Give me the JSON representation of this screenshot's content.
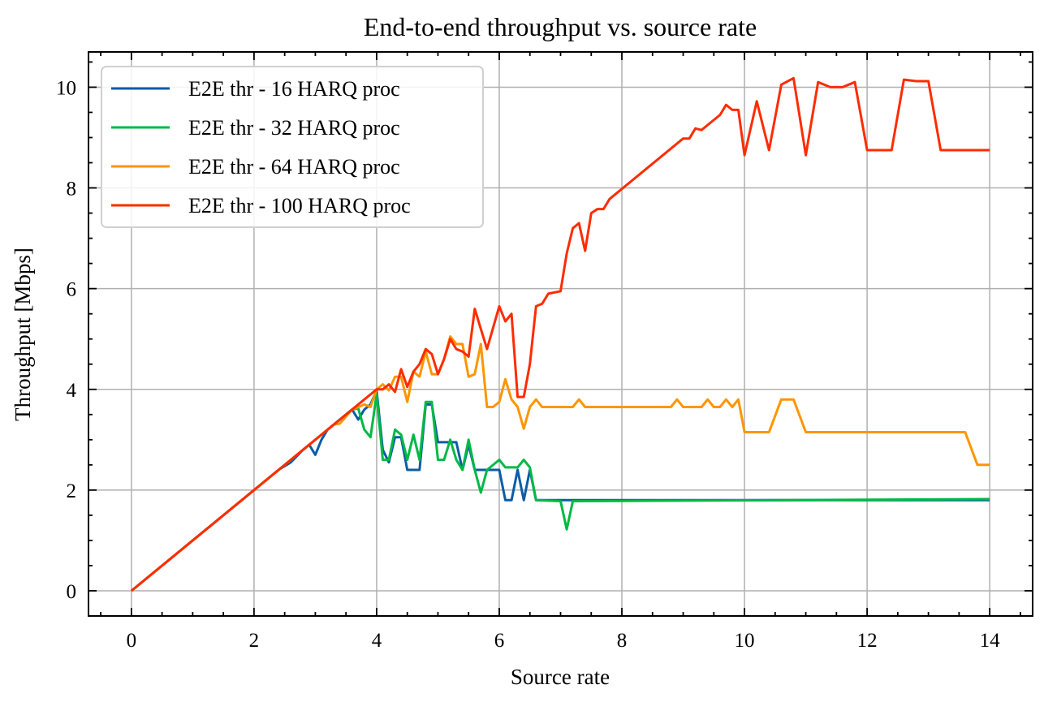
{
  "chart_data": {
    "type": "line",
    "title": "End-to-end throughput vs. source rate",
    "xlabel": "Source rate",
    "ylabel": "Throughput [Mbps]",
    "xlim": [
      -0.7,
      14.7
    ],
    "ylim": [
      -0.5,
      10.7
    ],
    "xticks": [
      0,
      2,
      4,
      6,
      8,
      10,
      12,
      14
    ],
    "xtick_labels": [
      "0",
      "2",
      "4",
      "6",
      "8",
      "10",
      "12",
      "14"
    ],
    "yticks": [
      0,
      2,
      4,
      6,
      8,
      10
    ],
    "ytick_labels": [
      "0",
      "2",
      "4",
      "6",
      "8",
      "10"
    ],
    "grid": true,
    "legend_position": "top-left",
    "series": [
      {
        "name": "E2E thr - 16 HARQ proc",
        "color": "#0C5DA5",
        "points": [
          [
            0,
            0
          ],
          [
            2.4,
            2.4
          ],
          [
            2.6,
            2.55
          ],
          [
            2.8,
            2.8
          ],
          [
            2.9,
            2.9
          ],
          [
            3.0,
            2.7
          ],
          [
            3.1,
            3.0
          ],
          [
            3.2,
            3.2
          ],
          [
            3.4,
            3.4
          ],
          [
            3.5,
            3.5
          ],
          [
            3.6,
            3.6
          ],
          [
            3.7,
            3.4
          ],
          [
            3.8,
            3.6
          ],
          [
            3.9,
            3.7
          ],
          [
            4.0,
            3.98
          ],
          [
            4.1,
            2.8
          ],
          [
            4.2,
            2.55
          ],
          [
            4.3,
            3.05
          ],
          [
            4.4,
            3.05
          ],
          [
            4.5,
            2.4
          ],
          [
            4.7,
            2.4
          ],
          [
            4.8,
            3.7
          ],
          [
            4.9,
            3.7
          ],
          [
            5.0,
            2.95
          ],
          [
            5.1,
            2.95
          ],
          [
            5.2,
            2.95
          ],
          [
            5.3,
            2.95
          ],
          [
            5.4,
            2.4
          ],
          [
            5.5,
            2.9
          ],
          [
            5.6,
            2.4
          ],
          [
            5.9,
            2.4
          ],
          [
            6.0,
            2.4
          ],
          [
            6.1,
            1.8
          ],
          [
            6.2,
            1.8
          ],
          [
            6.3,
            2.4
          ],
          [
            6.4,
            1.8
          ],
          [
            6.5,
            2.4
          ],
          [
            6.6,
            1.8
          ],
          [
            14,
            1.8
          ]
        ]
      },
      {
        "name": "E2E thr - 32 HARQ proc",
        "color": "#00B945",
        "points": [
          [
            0,
            0
          ],
          [
            3.5,
            3.5
          ],
          [
            3.6,
            3.6
          ],
          [
            3.7,
            3.62
          ],
          [
            3.8,
            3.2
          ],
          [
            3.9,
            3.05
          ],
          [
            4.0,
            3.9
          ],
          [
            4.1,
            2.6
          ],
          [
            4.2,
            2.6
          ],
          [
            4.3,
            3.2
          ],
          [
            4.4,
            3.1
          ],
          [
            4.5,
            2.6
          ],
          [
            4.6,
            3.1
          ],
          [
            4.7,
            2.6
          ],
          [
            4.8,
            3.75
          ],
          [
            4.9,
            3.75
          ],
          [
            5.0,
            2.6
          ],
          [
            5.1,
            2.6
          ],
          [
            5.2,
            3.0
          ],
          [
            5.3,
            2.6
          ],
          [
            5.4,
            2.4
          ],
          [
            5.5,
            3.0
          ],
          [
            5.6,
            2.4
          ],
          [
            5.7,
            1.95
          ],
          [
            5.8,
            2.4
          ],
          [
            6.0,
            2.6
          ],
          [
            6.1,
            2.45
          ],
          [
            6.3,
            2.45
          ],
          [
            6.4,
            2.6
          ],
          [
            6.5,
            2.45
          ],
          [
            6.6,
            1.8
          ],
          [
            7.0,
            1.78
          ],
          [
            7.1,
            1.22
          ],
          [
            7.2,
            1.78
          ],
          [
            14,
            1.82
          ]
        ]
      },
      {
        "name": "E2E thr - 64 HARQ proc",
        "color": "#FF9500",
        "points": [
          [
            0,
            0
          ],
          [
            3.2,
            3.2
          ],
          [
            3.3,
            3.3
          ],
          [
            3.4,
            3.32
          ],
          [
            3.6,
            3.6
          ],
          [
            3.7,
            3.65
          ],
          [
            3.8,
            3.7
          ],
          [
            3.9,
            3.65
          ],
          [
            4.0,
            4.0
          ],
          [
            4.1,
            4.1
          ],
          [
            4.2,
            3.98
          ],
          [
            4.3,
            4.25
          ],
          [
            4.4,
            4.25
          ],
          [
            4.5,
            3.75
          ],
          [
            4.6,
            4.35
          ],
          [
            4.7,
            4.25
          ],
          [
            4.8,
            4.75
          ],
          [
            4.9,
            4.3
          ],
          [
            5.0,
            4.3
          ],
          [
            5.1,
            4.6
          ],
          [
            5.2,
            5.05
          ],
          [
            5.3,
            4.9
          ],
          [
            5.4,
            4.9
          ],
          [
            5.5,
            4.25
          ],
          [
            5.6,
            4.3
          ],
          [
            5.7,
            4.9
          ],
          [
            5.8,
            3.65
          ],
          [
            5.9,
            3.65
          ],
          [
            6.0,
            3.75
          ],
          [
            6.1,
            4.2
          ],
          [
            6.2,
            3.8
          ],
          [
            6.3,
            3.65
          ],
          [
            6.4,
            3.22
          ],
          [
            6.5,
            3.65
          ],
          [
            6.6,
            3.8
          ],
          [
            6.7,
            3.65
          ],
          [
            7.2,
            3.65
          ],
          [
            7.3,
            3.8
          ],
          [
            7.4,
            3.65
          ],
          [
            8.8,
            3.65
          ],
          [
            8.9,
            3.8
          ],
          [
            9.0,
            3.65
          ],
          [
            9.3,
            3.65
          ],
          [
            9.4,
            3.8
          ],
          [
            9.5,
            3.65
          ],
          [
            9.6,
            3.65
          ],
          [
            9.7,
            3.8
          ],
          [
            9.8,
            3.65
          ],
          [
            9.9,
            3.8
          ],
          [
            10.0,
            3.15
          ],
          [
            10.4,
            3.15
          ],
          [
            10.6,
            3.8
          ],
          [
            10.8,
            3.8
          ],
          [
            11.0,
            3.15
          ],
          [
            13.2,
            3.15
          ],
          [
            13.4,
            3.15
          ],
          [
            13.6,
            3.15
          ],
          [
            13.8,
            2.5
          ],
          [
            14,
            2.5
          ]
        ]
      },
      {
        "name": "E2E thr - 100 HARQ proc",
        "color": "#FF2C00",
        "points": [
          [
            0,
            0
          ],
          [
            4.0,
            4.0
          ],
          [
            4.1,
            4.0
          ],
          [
            4.2,
            4.1
          ],
          [
            4.3,
            3.95
          ],
          [
            4.4,
            4.4
          ],
          [
            4.5,
            4.05
          ],
          [
            4.6,
            4.35
          ],
          [
            4.7,
            4.5
          ],
          [
            4.8,
            4.8
          ],
          [
            4.9,
            4.7
          ],
          [
            5.0,
            4.3
          ],
          [
            5.1,
            4.6
          ],
          [
            5.2,
            5.0
          ],
          [
            5.3,
            4.8
          ],
          [
            5.4,
            4.75
          ],
          [
            5.5,
            4.65
          ],
          [
            5.6,
            5.6
          ],
          [
            5.7,
            5.2
          ],
          [
            5.8,
            4.8
          ],
          [
            6.0,
            5.65
          ],
          [
            6.1,
            5.35
          ],
          [
            6.2,
            5.5
          ],
          [
            6.3,
            3.85
          ],
          [
            6.4,
            3.85
          ],
          [
            6.5,
            4.5
          ],
          [
            6.6,
            5.65
          ],
          [
            6.7,
            5.7
          ],
          [
            6.8,
            5.9
          ],
          [
            7.0,
            5.95
          ],
          [
            7.1,
            6.7
          ],
          [
            7.2,
            7.2
          ],
          [
            7.3,
            7.3
          ],
          [
            7.4,
            6.75
          ],
          [
            7.5,
            7.5
          ],
          [
            7.6,
            7.58
          ],
          [
            7.7,
            7.58
          ],
          [
            7.8,
            7.78
          ],
          [
            9.0,
            8.98
          ],
          [
            9.1,
            8.98
          ],
          [
            9.2,
            9.18
          ],
          [
            9.3,
            9.15
          ],
          [
            9.4,
            9.25
          ],
          [
            9.6,
            9.45
          ],
          [
            9.7,
            9.65
          ],
          [
            9.8,
            9.55
          ],
          [
            9.9,
            9.55
          ],
          [
            10.0,
            8.65
          ],
          [
            10.2,
            9.72
          ],
          [
            10.4,
            8.75
          ],
          [
            10.6,
            10.05
          ],
          [
            10.8,
            10.18
          ],
          [
            11.0,
            8.65
          ],
          [
            11.2,
            10.1
          ],
          [
            11.4,
            10.0
          ],
          [
            11.6,
            10.0
          ],
          [
            11.8,
            10.1
          ],
          [
            12.0,
            8.75
          ],
          [
            12.4,
            8.75
          ],
          [
            12.6,
            10.15
          ],
          [
            12.8,
            10.12
          ],
          [
            13.0,
            10.12
          ],
          [
            13.2,
            8.75
          ],
          [
            14,
            8.75
          ]
        ]
      }
    ]
  }
}
